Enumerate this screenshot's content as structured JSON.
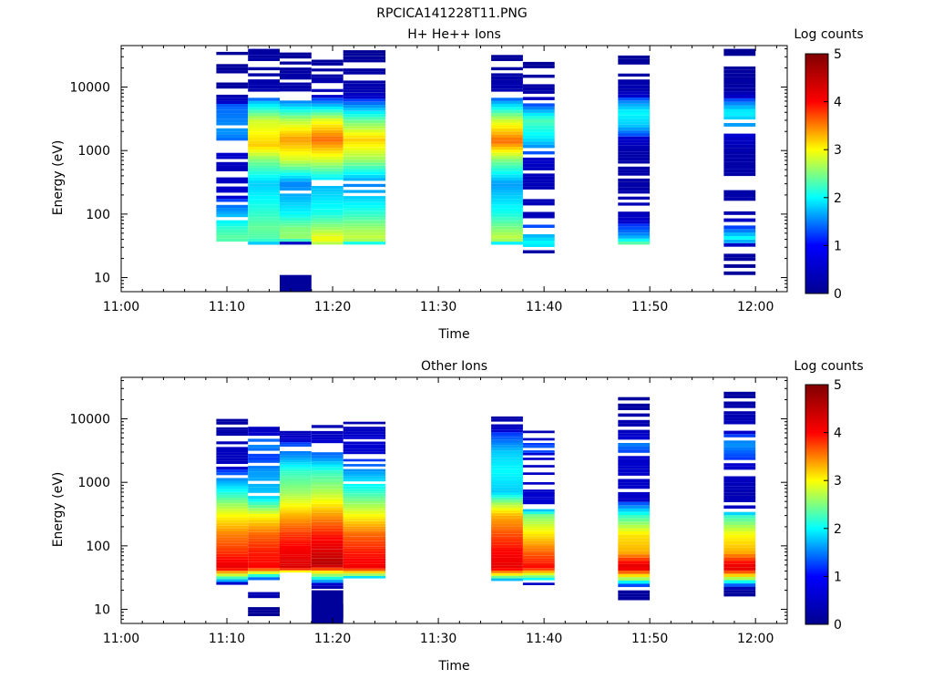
{
  "figure_title": "RPCICA141228T11.PNG",
  "chart_data": [
    {
      "type": "heatmap",
      "title": "H+ He++ Ions",
      "xlabel": "Time",
      "ylabel": "Energy (eV)",
      "x_ticks": [
        "11:00",
        "11:10",
        "11:20",
        "11:30",
        "11:40",
        "11:50",
        "12:00"
      ],
      "xlim": [
        "11:00",
        "12:03"
      ],
      "y_scale": "log",
      "y_ticks": [
        "10",
        "100",
        "1000",
        "10000"
      ],
      "ylim": [
        6,
        45000
      ],
      "colorbar": {
        "label": "Log counts",
        "range": [
          0,
          5
        ],
        "ticks": [
          "0",
          "1",
          "2",
          "3",
          "4",
          "5"
        ]
      },
      "colormap": [
        "#00008f",
        "#0000ff",
        "#00ffff",
        "#ffff00",
        "#ff0000",
        "#800000"
      ],
      "columns": [
        {
          "start": "11:09",
          "end": "11:12",
          "profile": [
            [
              33,
              1.8
            ],
            [
              40,
              2.4
            ],
            [
              60,
              2.2
            ],
            [
              100,
              1.7
            ],
            [
              200,
              1.1
            ],
            [
              500,
              0.8
            ],
            [
              1000,
              1.2
            ],
            [
              2000,
              1.6
            ],
            [
              5000,
              1.4
            ],
            [
              8000,
              0.3
            ],
            [
              40000,
              0.2
            ]
          ]
        },
        {
          "start": "11:12",
          "end": "11:15",
          "profile": [
            [
              33,
              1.6
            ],
            [
              40,
              2.3
            ],
            [
              60,
              2.4
            ],
            [
              100,
              2.2
            ],
            [
              300,
              1.8
            ],
            [
              700,
              2.5
            ],
            [
              1200,
              3.2
            ],
            [
              3000,
              2.8
            ],
            [
              6000,
              1.7
            ],
            [
              8000,
              0.6
            ],
            [
              40000,
              0.3
            ]
          ]
        },
        {
          "start": "11:15",
          "end": "11:18",
          "profile": [
            [
              33,
              0.3
            ],
            [
              40,
              2.6
            ],
            [
              60,
              2.5
            ],
            [
              100,
              2.0
            ],
            [
              300,
              1.5
            ],
            [
              700,
              2.8
            ],
            [
              1500,
              3.4
            ],
            [
              3000,
              2.7
            ],
            [
              6000,
              1.5
            ],
            [
              9000,
              0.5
            ],
            [
              35000,
              0.2
            ]
          ]
        },
        {
          "start": "11:18",
          "end": "11:21",
          "profile": [
            [
              33,
              2.6
            ],
            [
              40,
              3.0
            ],
            [
              60,
              2.6
            ],
            [
              100,
              2.1
            ],
            [
              300,
              1.7
            ],
            [
              700,
              2.8
            ],
            [
              1500,
              3.6
            ],
            [
              3000,
              2.9
            ],
            [
              6000,
              1.4
            ],
            [
              9000,
              0.7
            ],
            [
              30000,
              0.2
            ]
          ]
        },
        {
          "start": "11:21",
          "end": "11:25",
          "profile": [
            [
              33,
              1.8
            ],
            [
              40,
              2.8
            ],
            [
              60,
              2.6
            ],
            [
              100,
              2.2
            ],
            [
              300,
              1.5
            ],
            [
              700,
              2.6
            ],
            [
              1500,
              3.2
            ],
            [
              3000,
              2.4
            ],
            [
              6000,
              1.3
            ],
            [
              9000,
              0.6
            ],
            [
              38000,
              0.1
            ]
          ]
        },
        {
          "start": "11:35",
          "end": "11:38",
          "profile": [
            [
              33,
              1.6
            ],
            [
              40,
              2.8
            ],
            [
              60,
              2.5
            ],
            [
              100,
              2.1
            ],
            [
              300,
              1.6
            ],
            [
              700,
              2.5
            ],
            [
              1400,
              3.6
            ],
            [
              3000,
              2.8
            ],
            [
              6000,
              1.6
            ],
            [
              9000,
              0.6
            ],
            [
              40000,
              0.1
            ]
          ]
        },
        {
          "start": "11:38",
          "end": "11:41",
          "profile": [
            [
              17,
              0.2
            ],
            [
              25,
              0.3
            ],
            [
              33,
              2.1
            ],
            [
              60,
              1.4
            ],
            [
              100,
              0.7
            ],
            [
              300,
              0.7
            ],
            [
              700,
              1.0
            ],
            [
              1500,
              1.9
            ],
            [
              3000,
              2.3
            ],
            [
              5000,
              1.4
            ],
            [
              8000,
              0.5
            ],
            [
              28000,
              0.1
            ]
          ]
        },
        {
          "start": "11:47",
          "end": "11:50",
          "profile": [
            [
              33,
              2.5
            ],
            [
              45,
              1.6
            ],
            [
              100,
              0.8
            ],
            [
              300,
              0.4
            ],
            [
              1000,
              0.5
            ],
            [
              2500,
              1.8
            ],
            [
              4000,
              2.0
            ],
            [
              6000,
              1.5
            ],
            [
              9000,
              0.6
            ],
            [
              35000,
              0.1
            ]
          ]
        },
        {
          "start": "11:57",
          "end": "12:00",
          "profile": [
            [
              11,
              0.2
            ],
            [
              20,
              0.3
            ],
            [
              30,
              0.5
            ],
            [
              40,
              2.1
            ],
            [
              60,
              1.3
            ],
            [
              100,
              0.6
            ],
            [
              300,
              0.4
            ],
            [
              1000,
              0.5
            ],
            [
              2500,
              1.6
            ],
            [
              4000,
              2.0
            ],
            [
              6000,
              1.4
            ],
            [
              9000,
              0.4
            ],
            [
              40000,
              0.1
            ]
          ]
        }
      ],
      "extra_blocks": [
        {
          "start": "11:15",
          "end": "11:18",
          "emin": 6,
          "emax": 11,
          "level": 0.1
        }
      ]
    },
    {
      "type": "heatmap",
      "title": "Other Ions",
      "xlabel": "Time",
      "ylabel": "Energy (eV)",
      "x_ticks": [
        "11:00",
        "11:10",
        "11:20",
        "11:30",
        "11:40",
        "11:50",
        "12:00"
      ],
      "xlim": [
        "11:00",
        "12:03"
      ],
      "y_scale": "log",
      "y_ticks": [
        "10",
        "100",
        "1000",
        "10000"
      ],
      "ylim": [
        6,
        45000
      ],
      "colorbar": {
        "label": "Log counts",
        "range": [
          0,
          5
        ],
        "ticks": [
          "0",
          "1",
          "2",
          "3",
          "4",
          "5"
        ]
      },
      "colormap": [
        "#00008f",
        "#0000ff",
        "#00ffff",
        "#ffff00",
        "#ff0000",
        "#800000"
      ],
      "columns": [
        {
          "start": "11:09",
          "end": "11:12",
          "profile": [
            [
              22,
              0.3
            ],
            [
              30,
              2.0
            ],
            [
              45,
              4.2
            ],
            [
              80,
              3.8
            ],
            [
              150,
              3.5
            ],
            [
              300,
              3.0
            ],
            [
              450,
              2.6
            ],
            [
              2200,
              0.8
            ],
            [
              3500,
              0.9
            ],
            [
              6000,
              0.5
            ],
            [
              15000,
              0.2
            ]
          ]
        },
        {
          "start": "11:12",
          "end": "11:15",
          "profile": [
            [
              7,
              0.1
            ],
            [
              11,
              0.2
            ],
            [
              30,
              1.3
            ],
            [
              45,
              4.0
            ],
            [
              80,
              3.9
            ],
            [
              150,
              3.6
            ],
            [
              300,
              3.0
            ],
            [
              600,
              1.8
            ],
            [
              1500,
              1.6
            ],
            [
              2500,
              1.2
            ],
            [
              4000,
              1.6
            ],
            [
              7500,
              0.8
            ]
          ]
        },
        {
          "start": "11:15",
          "end": "11:18",
          "profile": [
            [
              38,
              2.6
            ],
            [
              45,
              4.3
            ],
            [
              80,
              4.1
            ],
            [
              150,
              3.8
            ],
            [
              300,
              3.3
            ],
            [
              700,
              2.6
            ],
            [
              1500,
              2.2
            ],
            [
              2500,
              1.6
            ],
            [
              4000,
              1.3
            ],
            [
              7000,
              0.6
            ]
          ]
        },
        {
          "start": "11:18",
          "end": "11:21",
          "profile": [
            [
              7,
              0.1
            ],
            [
              20,
              0.2
            ],
            [
              38,
              3.0
            ],
            [
              50,
              4.6
            ],
            [
              80,
              4.3
            ],
            [
              150,
              3.9
            ],
            [
              300,
              3.4
            ],
            [
              700,
              2.7
            ],
            [
              1500,
              2.2
            ],
            [
              2500,
              1.5
            ],
            [
              4000,
              1.2
            ],
            [
              8000,
              0.6
            ]
          ]
        },
        {
          "start": "11:21",
          "end": "11:25",
          "profile": [
            [
              28,
              0.8
            ],
            [
              35,
              2.6
            ],
            [
              45,
              4.1
            ],
            [
              80,
              3.9
            ],
            [
              150,
              3.6
            ],
            [
              300,
              3.0
            ],
            [
              700,
              2.2
            ],
            [
              1500,
              1.6
            ],
            [
              2500,
              1.1
            ],
            [
              5000,
              1.2
            ],
            [
              9000,
              0.5
            ]
          ]
        },
        {
          "start": "11:35",
          "end": "11:38",
          "profile": [
            [
              28,
              1.4
            ],
            [
              35,
              3.0
            ],
            [
              45,
              4.2
            ],
            [
              80,
              4.0
            ],
            [
              150,
              3.7
            ],
            [
              300,
              3.3
            ],
            [
              450,
              2.7
            ],
            [
              700,
              1.8
            ],
            [
              1500,
              2.0
            ],
            [
              3000,
              1.8
            ],
            [
              6000,
              1.2
            ],
            [
              12000,
              0.3
            ]
          ]
        },
        {
          "start": "11:38",
          "end": "11:41",
          "profile": [
            [
              22,
              0.3
            ],
            [
              30,
              2.0
            ],
            [
              45,
              4.0
            ],
            [
              80,
              3.6
            ],
            [
              150,
              3.1
            ],
            [
              300,
              2.5
            ],
            [
              420,
              1.2
            ],
            [
              2000,
              0.9
            ],
            [
              3500,
              1.4
            ],
            [
              6500,
              0.6
            ]
          ]
        },
        {
          "start": "11:47",
          "end": "11:50",
          "profile": [
            [
              11,
              0.2
            ],
            [
              20,
              0.3
            ],
            [
              30,
              2.6
            ],
            [
              45,
              4.3
            ],
            [
              80,
              3.3
            ],
            [
              150,
              3.1
            ],
            [
              300,
              2.2
            ],
            [
              550,
              1.0
            ],
            [
              2500,
              1.1
            ],
            [
              4000,
              1.5
            ],
            [
              7000,
              0.7
            ],
            [
              22000,
              0.2
            ]
          ]
        },
        {
          "start": "11:57",
          "end": "12:00",
          "profile": [
            [
              16,
              0.2
            ],
            [
              20,
              0.3
            ],
            [
              30,
              2.6
            ],
            [
              45,
              4.3
            ],
            [
              80,
              3.3
            ],
            [
              150,
              3.0
            ],
            [
              300,
              2.2
            ],
            [
              380,
              1.0
            ],
            [
              650,
              0.6
            ],
            [
              2300,
              1.2
            ],
            [
              4000,
              1.6
            ],
            [
              8000,
              0.8
            ],
            [
              30000,
              0.2
            ]
          ]
        }
      ],
      "extra_blocks": [
        {
          "start": "11:18",
          "end": "11:21",
          "emin": 6,
          "emax": 20,
          "level": 0.1
        }
      ]
    }
  ]
}
